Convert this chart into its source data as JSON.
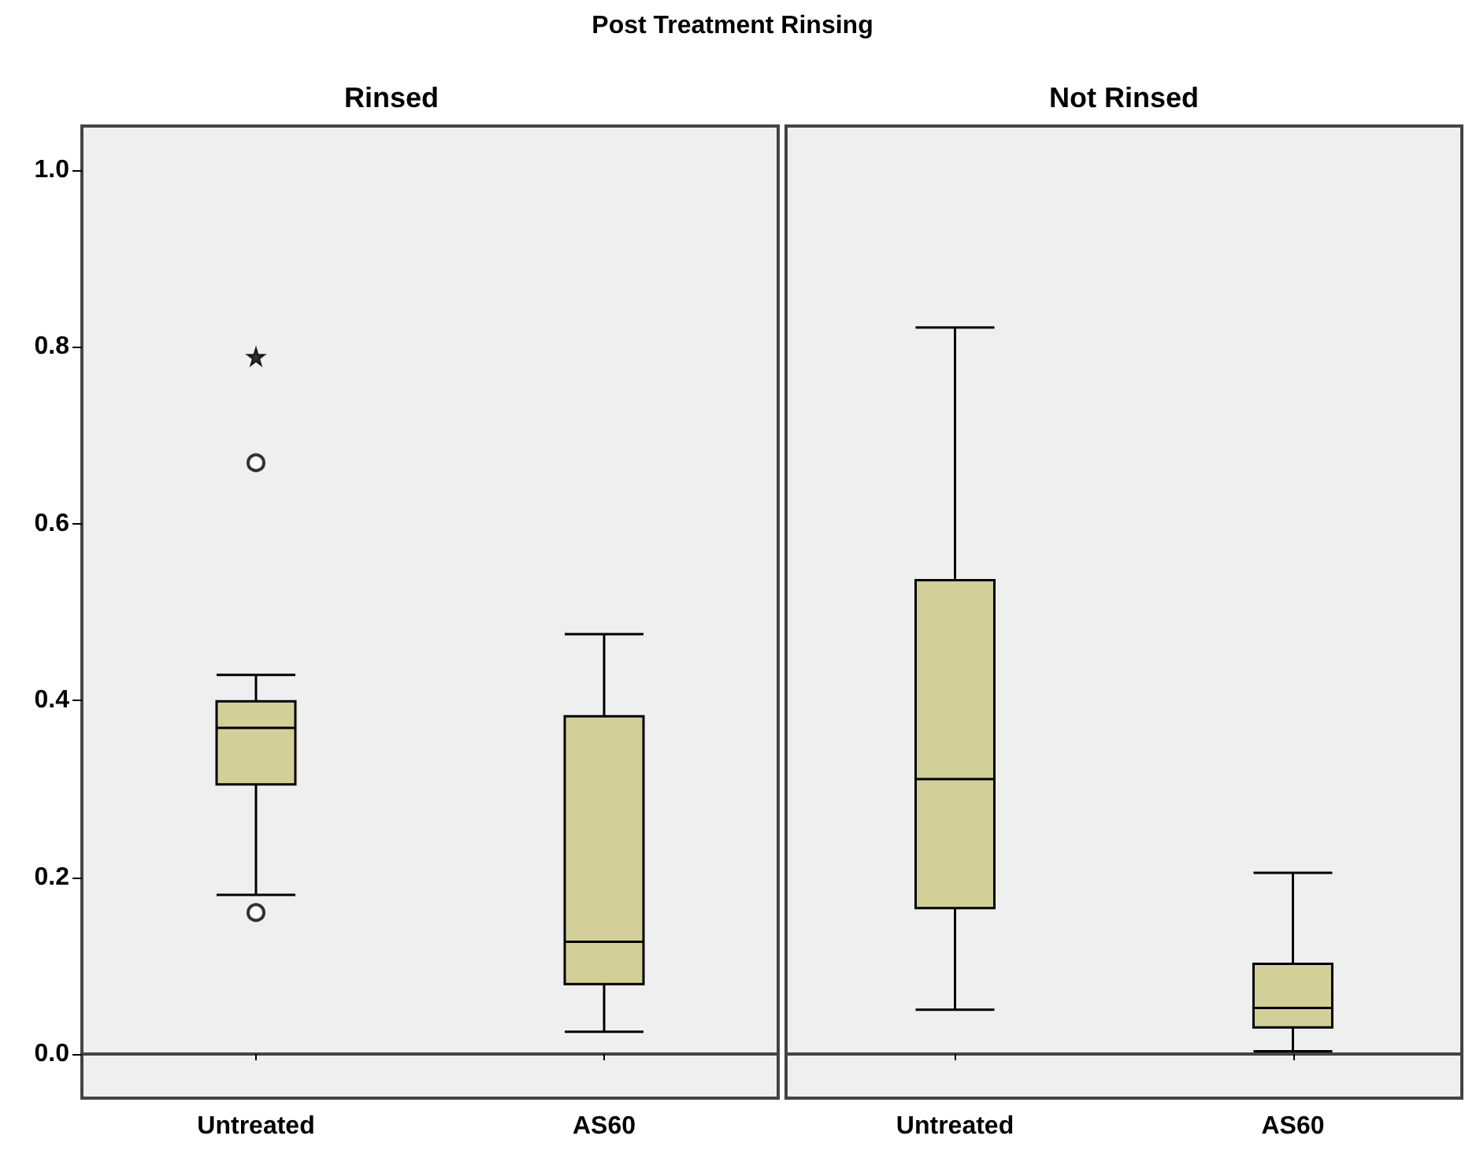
{
  "chart_data": [
    {
      "type": "box",
      "title": "Post Treatment Rinsing",
      "subtitle": "Rinsed",
      "categories": [
        "Untreated",
        "AS60"
      ],
      "color": "#d3cf98",
      "ylim": [
        -0.05,
        1.05
      ],
      "yticks": [
        {
          "value": 0,
          "label": "0.0"
        },
        0.2,
        0.4,
        0.6,
        0.8,
        {
          "value": 1,
          "label": "1.0"
        }
      ],
      "marker": "circle",
      "boxes": [
        {
          "low": 0.18,
          "q1": 0.305,
          "median": 0.369,
          "q3": 0.399,
          "high": 0.429,
          "outliers": [
            0.669,
            0.16
          ]
        },
        {
          "low": 0.025,
          "q1": 0.079,
          "median": 0.127,
          "q3": 0.382,
          "high": 0.475
        }
      ],
      "series": [
        {
          "type": "scatter",
          "marker": "star",
          "color": "#000000",
          "x": [
            "Untreated"
          ],
          "values": [
            0.789
          ]
        }
      ]
    },
    {
      "type": "box",
      "subtitle": "Not Rinsed",
      "categories": [
        "Untreated",
        "AS60"
      ],
      "color": "#d3cf98",
      "ylim": [
        -0.05,
        1.05
      ],
      "tick_labels": "x",
      "boxes": [
        {
          "low": 0.05,
          "q1": 0.165,
          "median": 0.311,
          "q3": 0.536,
          "high": 0.822
        },
        {
          "low": 0.003,
          "q1": 0.03,
          "median": 0.052,
          "q3": 0.102,
          "high": 0.205
        }
      ]
    }
  ]
}
